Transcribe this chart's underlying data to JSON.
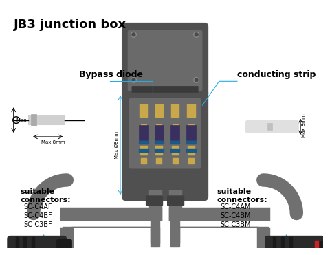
{
  "title": "JB3 junction box",
  "bg_color": "#ffffff",
  "label_bypass": "Bypass diode",
  "label_conducting": "conducting strip",
  "label_left_conn": "suitable\nconnectors:",
  "label_right_conn": "suitable\nconnectors:",
  "left_connectors": [
    "SC-C4AF",
    "SC-C4BF",
    "SC-C3BF"
  ],
  "right_connectors": [
    "SC-C4AM",
    "SC-C4BM",
    "SC-C3BM"
  ],
  "dim_diode_1": "Max Ø1.3mm",
  "dim_diode_2": "Max 8mm",
  "dim_box_h": "Max Ø8mm",
  "dim_strip": "Max 8mm",
  "line_color": "#29abe2",
  "dark_gray": "#3d3d3d",
  "mid_gray": "#555555",
  "light_gray": "#888888",
  "gold": "#c8a84b",
  "box_body_color": "#4a4a4a",
  "arrow_color": "#29abe2"
}
